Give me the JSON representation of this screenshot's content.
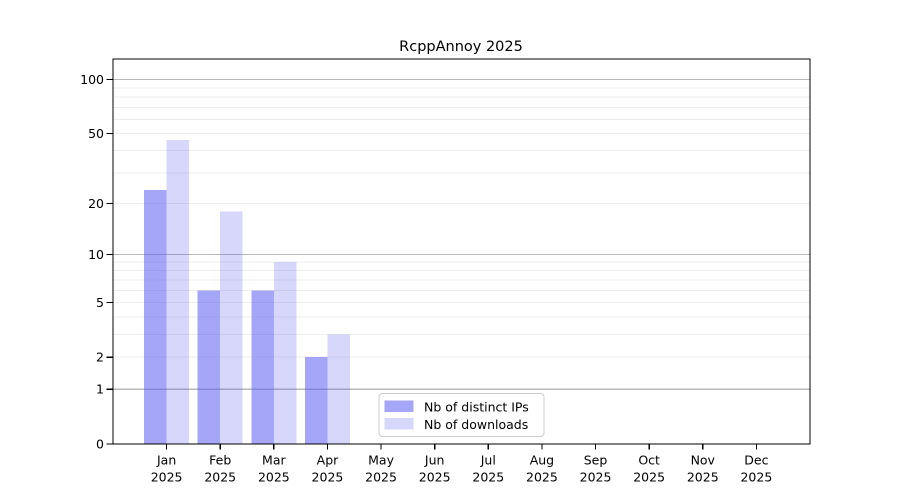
{
  "window": {
    "background": "#ffffff"
  },
  "chart_data": {
    "type": "bar",
    "title": "RcppAnnoy 2025",
    "xlabel": "",
    "ylabel": "",
    "scale": "log1p",
    "ylim": [
      0,
      130
    ],
    "grid": true,
    "legend_position": "lower center-left inside plot",
    "categories": [
      "Jan",
      "Feb",
      "Mar",
      "Apr",
      "May",
      "Jun",
      "Jul",
      "Aug",
      "Sep",
      "Oct",
      "Nov",
      "Dec"
    ],
    "category_year": "2025",
    "series": [
      {
        "name": "Nb of distinct IPs",
        "color": "rgba(86,86,244,0.53)",
        "color_on_white_hex": "#a6a6f9",
        "values": [
          24,
          6,
          6,
          2,
          0,
          0,
          0,
          0,
          0,
          0,
          0,
          0
        ]
      },
      {
        "name": "Nb of downloads",
        "color": "rgba(86,86,244,0.24)",
        "color_on_white_hex": "#d6d6fc",
        "values": [
          46,
          18,
          9,
          3,
          0,
          0,
          0,
          0,
          0,
          0,
          0,
          0
        ]
      }
    ],
    "y_ticks": [
      0,
      1,
      2,
      5,
      10,
      20,
      50,
      100
    ],
    "grid_major": [
      1,
      10,
      100
    ],
    "grid_minor": [
      2,
      3,
      4,
      5,
      6,
      7,
      8,
      9,
      20,
      30,
      40,
      50,
      60,
      70,
      80,
      90
    ]
  },
  "colors": {
    "grid_major": "#b9b9b9",
    "grid_minor": "#ededed",
    "spine": "#000000",
    "legend_border": "#cccccc",
    "legend_background": "#ffffff"
  }
}
